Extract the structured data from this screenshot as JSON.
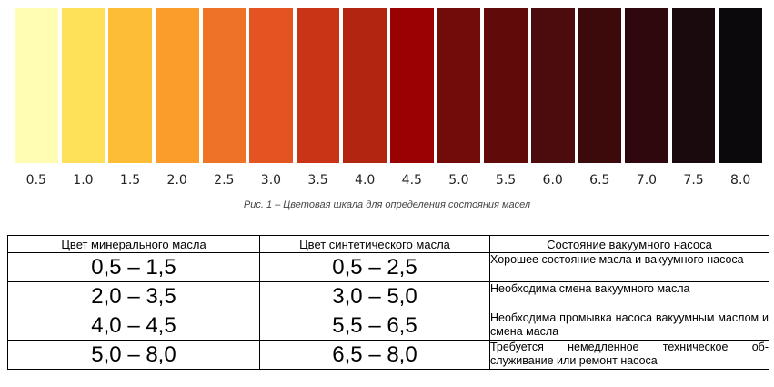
{
  "scale": {
    "swatches": [
      {
        "label": "0.5",
        "color": "#FFFCB4"
      },
      {
        "label": "1.0",
        "color": "#FEE158"
      },
      {
        "label": "1.5",
        "color": "#FEBD37"
      },
      {
        "label": "2.0",
        "color": "#FB9D2B"
      },
      {
        "label": "2.5",
        "color": "#EE7326"
      },
      {
        "label": "3.0",
        "color": "#E35420"
      },
      {
        "label": "3.5",
        "color": "#C93416"
      },
      {
        "label": "4.0",
        "color": "#B22611"
      },
      {
        "label": "4.5",
        "color": "#9A0102"
      },
      {
        "label": "5.0",
        "color": "#720C0A"
      },
      {
        "label": "5.5",
        "color": "#600A0A"
      },
      {
        "label": "6.0",
        "color": "#4C0B0C"
      },
      {
        "label": "6.5",
        "color": "#3D0A0C"
      },
      {
        "label": "7.0",
        "color": "#2E080C"
      },
      {
        "label": "7.5",
        "color": "#1A0A0E"
      },
      {
        "label": "8.0",
        "color": "#0B090B"
      }
    ]
  },
  "caption": "Рис. 1 – Цветовая шкала для определения состояния масел",
  "table": {
    "headers": [
      "Цвет минерального масла",
      "Цвет синтетического масла",
      "Состояние вакуумного насоса"
    ],
    "rows": [
      {
        "mineral": "0,5 – 1,5",
        "synthetic": "0,5 – 2,5",
        "state": "Хорошее состояние масла и вакуумного насоса"
      },
      {
        "mineral": "2,0 – 3,5",
        "synthetic": "3,0 – 5,0",
        "state": "Необходима смена вакуумного масла"
      },
      {
        "mineral": "4,0 – 4,5",
        "synthetic": "5,5 – 6,5",
        "state": "Необходима промывка насоса вакуумным маслом и смена масла"
      },
      {
        "mineral": "5,0 – 8,0",
        "synthetic": "6,5 – 8,0",
        "state": "Требуется немедленное техническое об-служивание или ремонт насоса"
      }
    ]
  }
}
